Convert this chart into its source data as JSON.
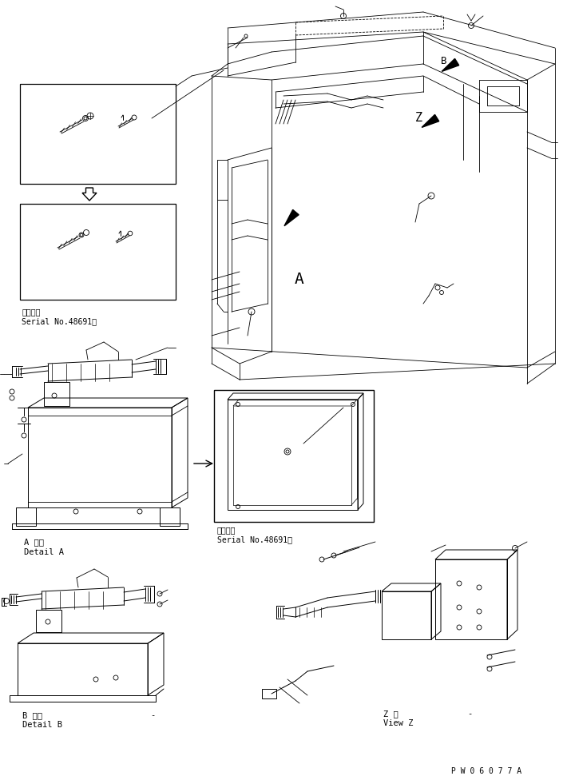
{
  "background_color": "#ffffff",
  "line_color": "#000000",
  "fig_width": 7.05,
  "fig_height": 9.76,
  "dpi": 100,
  "watermark": "P W 0 6 0 7 7 A",
  "labels": {
    "detail_a_jp": "A 詳細",
    "detail_a_en": "Detail A",
    "detail_b_jp": "B 詳細",
    "detail_b_en": "Detail B",
    "view_z_jp": "Z 視",
    "view_z_en": "View Z",
    "serial_jp": "適用号機",
    "serial_no": "Serial No.48691～"
  }
}
